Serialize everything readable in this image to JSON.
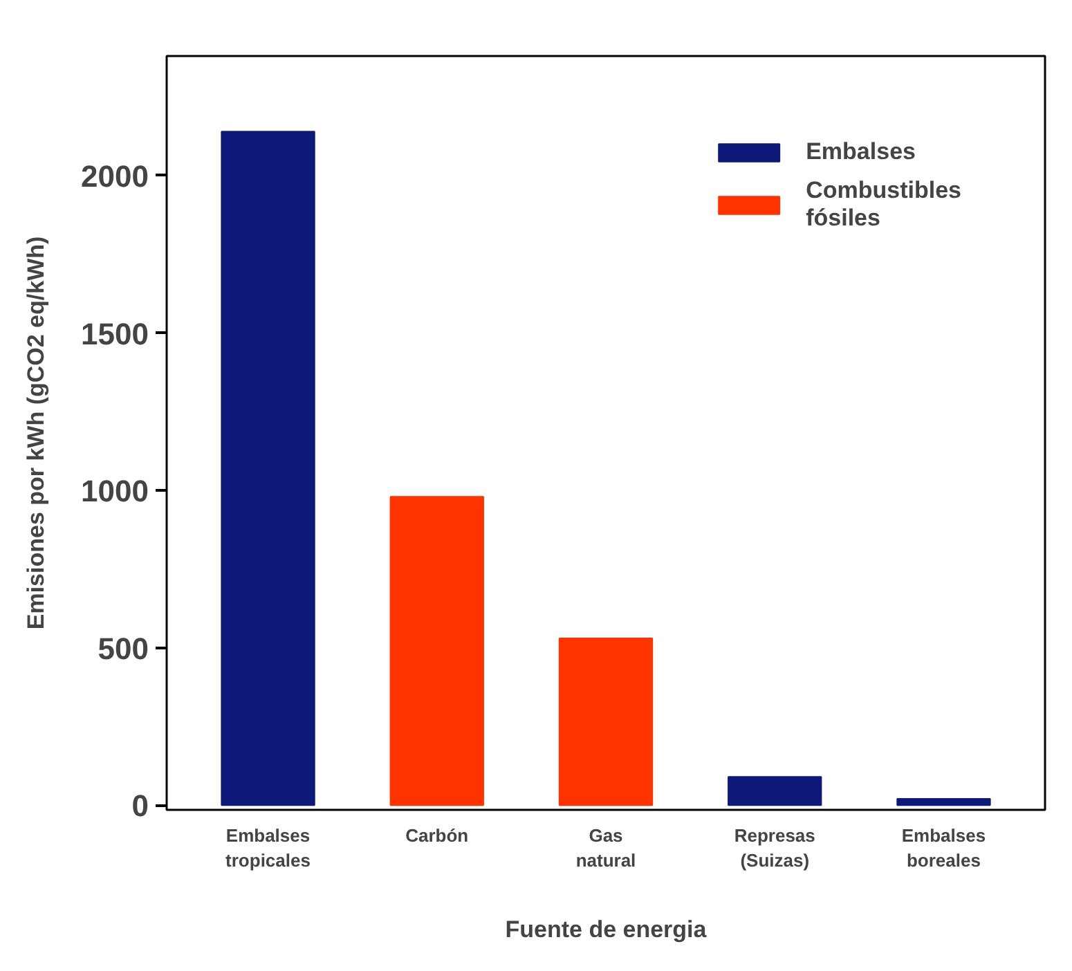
{
  "chart_data": {
    "type": "bar",
    "xlabel": "Fuente de energia",
    "ylabel": "Emisiones por kWh (gCO2 eq/kWh)",
    "categories": [
      "Embalses\ntropicales",
      "Carbón",
      "Gas\nnatural",
      "Represas\n(Suizas)",
      "Embalses\nboreales"
    ],
    "series": [
      {
        "name": "Embalses",
        "color": "#0d1a7a",
        "values": [
          2140,
          null,
          null,
          90,
          20
        ]
      },
      {
        "name": "Combustibles\nfósiles",
        "color": "#ff3300",
        "values": [
          null,
          980,
          530,
          null,
          null
        ]
      }
    ],
    "ylim": [
      -15,
      2380
    ],
    "yticks": [
      0,
      500,
      1000,
      1500,
      2000
    ],
    "grid": false,
    "legend": "top right"
  }
}
